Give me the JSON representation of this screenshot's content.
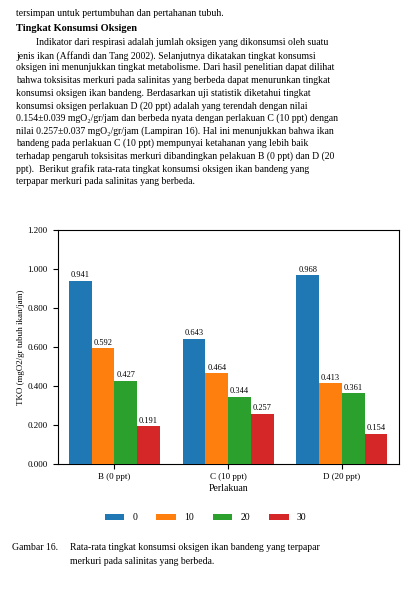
{
  "chart_data": {
    "type": "bar",
    "categories": [
      "B (0 ppt)",
      "C (10 ppt)",
      "D (20 ppt)"
    ],
    "series": [
      {
        "name": "0",
        "values": [
          0.941,
          0.643,
          0.968
        ]
      },
      {
        "name": "10",
        "values": [
          0.592,
          0.464,
          0.413
        ]
      },
      {
        "name": "20",
        "values": [
          0.427,
          0.344,
          0.361
        ]
      },
      {
        "name": "30",
        "values": [
          0.191,
          0.257,
          0.154
        ]
      }
    ],
    "xlabel": "Perlakuan",
    "ylabel": "TKO (mgO2/gr tubuh ikan/jam)",
    "ylim": [
      0.0,
      1.2
    ],
    "yticks": [
      {
        "value": 0.0,
        "label": "0.000"
      },
      {
        "value": 0.2,
        "label": "0.200"
      },
      {
        "value": 0.4,
        "label": "0.400"
      },
      {
        "value": 0.6,
        "label": "0.600"
      },
      {
        "value": 0.8,
        "label": "0.800"
      },
      {
        "value": 1.0,
        "label": "1.000"
      },
      {
        "value": 1.2,
        "label": "1.200"
      }
    ],
    "data_labels": true,
    "legend": "lower center",
    "annotations": [
      "tersimpan untuk pertumbuhan dan pertahanan tubuh.",
      "Tingkat Konsumsi Oksigen",
      "        Indikator dari respirasi adalah jumlah oksigen yang dikonsumsi oleh suatu",
      "jenis ikan (Affandi dan Tang 2002). Selanjutnya dikatakan tingkat konsumsi",
      "oksigen ini menunjukkan tingkat metabolisme. Dari hasil penelitian dapat dilihat",
      "bahwa toksisitas merkuri pada salinitas yang berbeda dapat menurunkan tingkat",
      "konsumsi oksigen ikan bandeng. Berdasarkan uji statistik diketahui tingkat",
      "konsumsi oksigen perlakuan D (20 ppt) adalah yang terendah dengan nilai",
      "0.154±0.039 mgO₂/gr/jam dan berbeda nyata dengan perlakuan C (10 ppt) dengan",
      "nilai 0.257±0.037 mgO₂/gr/jam (Lampiran 16). Hal ini menunjukkan bahwa ikan",
      "bandeng pada perlakuan C (10 ppt) mempunyai ketahanan yang lebih baik",
      "terhadap pengaruh toksisitas merkuri dibandingkan pelakuan B (0 ppt) dan D (20",
      "ppt).  Berikut grafik rata-rata tingkat konsumsi oksigen ikan bandeng yang",
      "terpapar merkuri pada salinitas yang berbeda.",
      "Gambar 16.",
      "Rata-rata tingkat konsumsi oksigen ikan bandeng yang terpapar",
      "merkuri pada salinitas yang berbeda."
    ]
  }
}
